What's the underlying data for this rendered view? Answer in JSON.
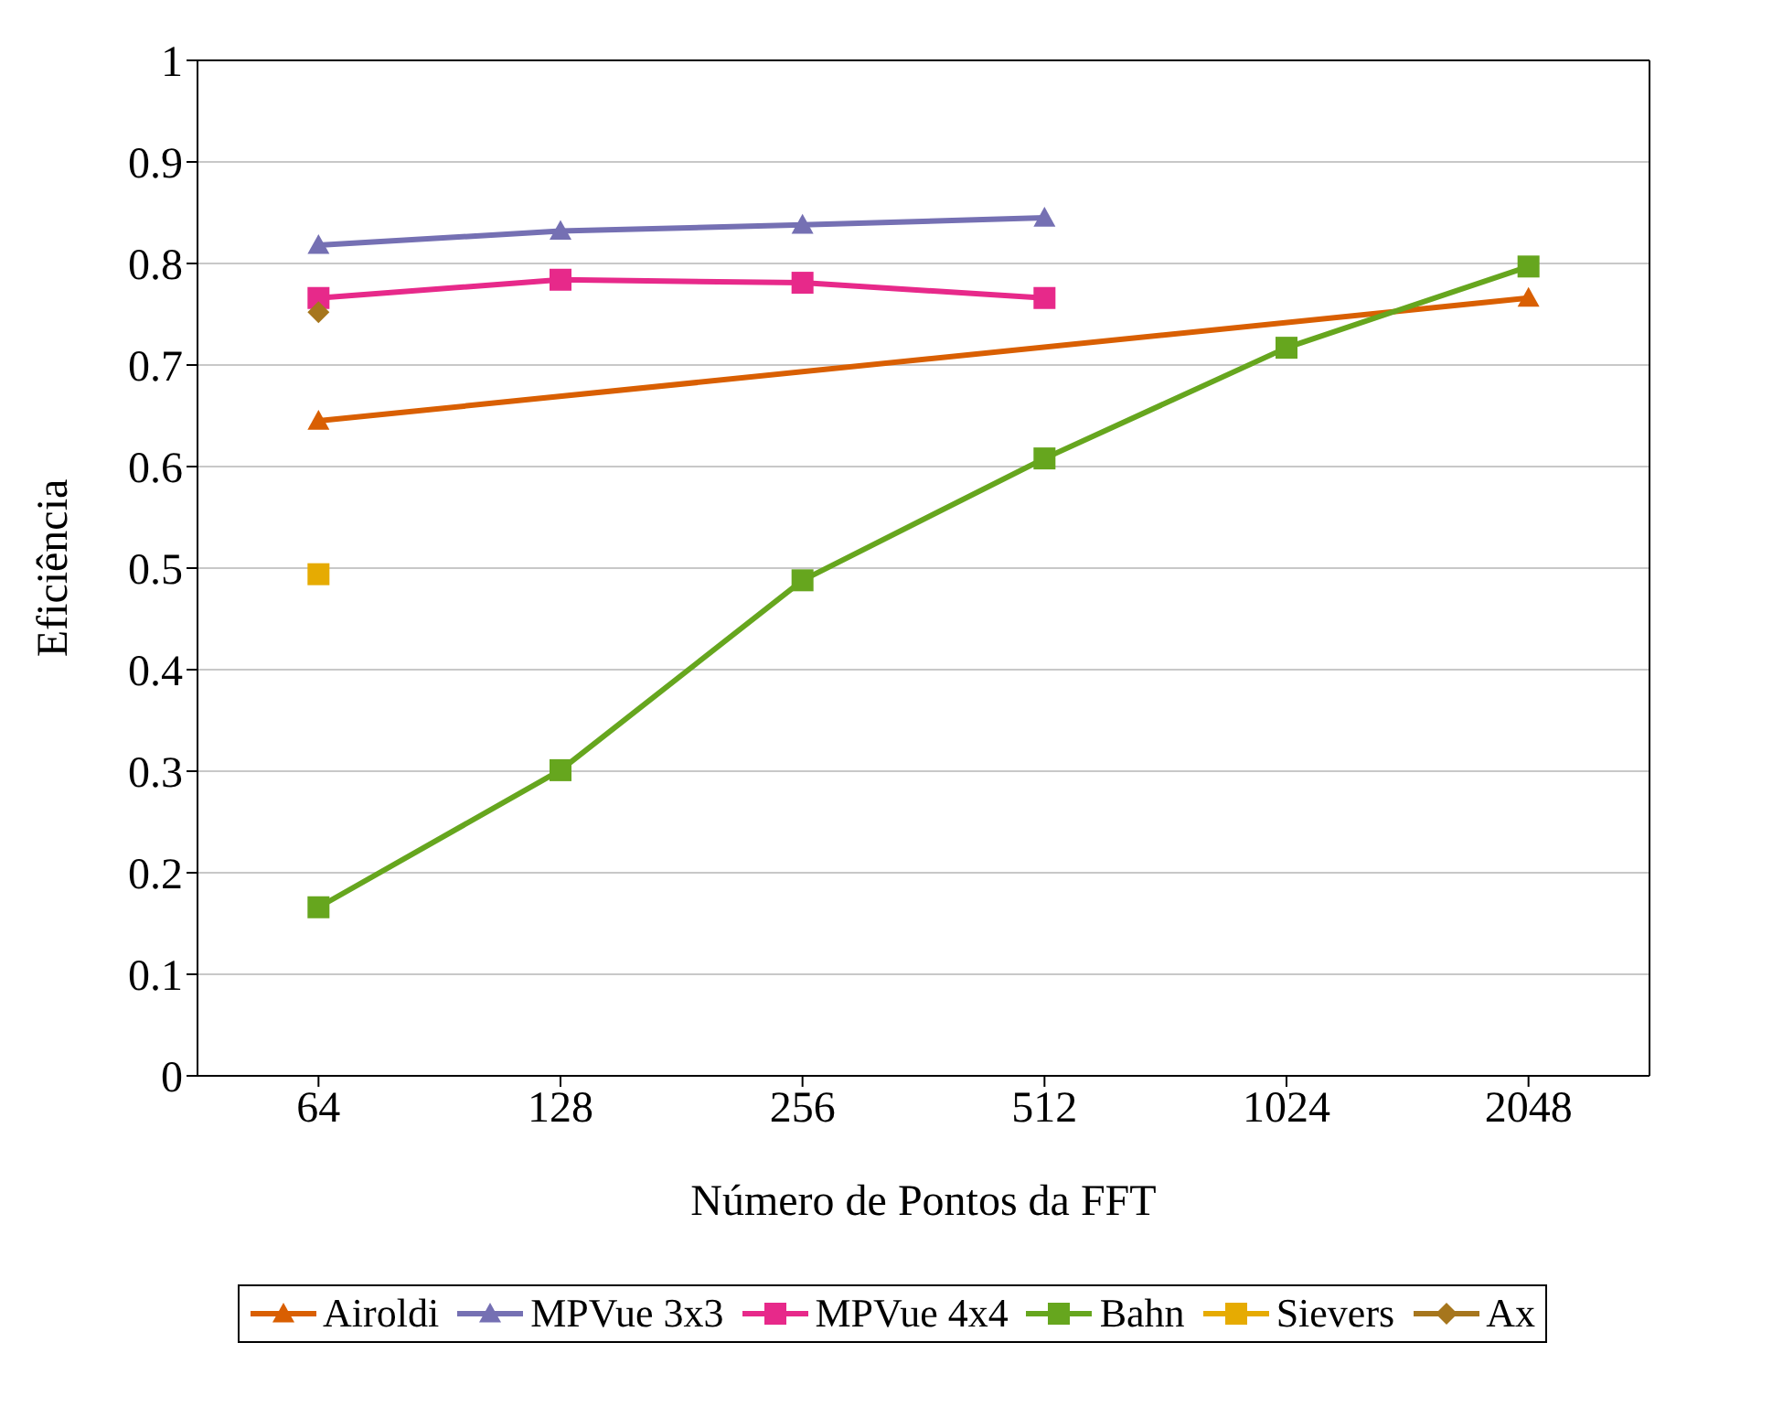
{
  "chart_data": {
    "type": "line",
    "xlabel": "Número de Pontos da FFT",
    "ylabel": "Eficiência",
    "categories": [
      "64",
      "128",
      "256",
      "512",
      "1024",
      "2048"
    ],
    "ylim": [
      0,
      1
    ],
    "yticks": [
      0,
      0.1,
      0.2,
      0.3,
      0.4,
      0.5,
      0.6,
      0.7,
      0.8,
      0.9,
      1
    ],
    "grid": "y",
    "legend": "bottom",
    "series": [
      {
        "name": "Airoldi",
        "color": "#d95f02",
        "marker": "triangle",
        "values": [
          0.645,
          null,
          null,
          null,
          null,
          0.766
        ]
      },
      {
        "name": "MPVue 3x3",
        "color": "#7570b3",
        "marker": "triangle",
        "values": [
          0.818,
          0.832,
          0.838,
          0.845,
          null,
          null
        ]
      },
      {
        "name": "MPVue 4x4",
        "color": "#e7298a",
        "marker": "square",
        "values": [
          0.766,
          0.784,
          0.781,
          0.766,
          null,
          null
        ]
      },
      {
        "name": "Bahn",
        "color": "#66a61e",
        "marker": "square",
        "values": [
          0.166,
          0.301,
          0.488,
          0.608,
          0.717,
          0.797
        ]
      },
      {
        "name": "Sievers",
        "color": "#e6ab02",
        "marker": "square",
        "values": [
          0.494,
          null,
          null,
          null,
          null,
          null
        ]
      },
      {
        "name": "Ax",
        "color": "#a6761d",
        "marker": "diamond",
        "values": [
          0.752,
          null,
          null,
          null,
          null,
          null
        ]
      }
    ]
  }
}
